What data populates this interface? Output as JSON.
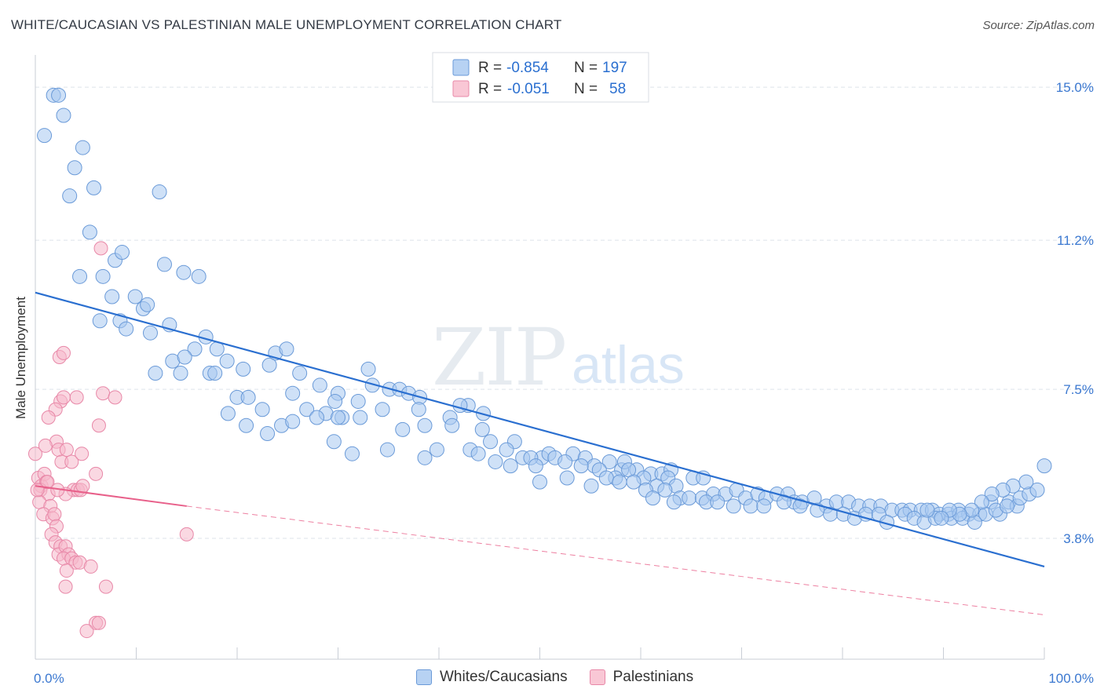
{
  "title": "WHITE/CAUCASIAN VS PALESTINIAN MALE UNEMPLOYMENT CORRELATION CHART",
  "source": "Source: ZipAtlas.com",
  "watermark": {
    "zip": "ZIP",
    "atlas": "atlas"
  },
  "legend": {
    "rows": [
      {
        "r_label": "R =",
        "r_value": "-0.854",
        "n_label": "N =",
        "n_value": "197"
      },
      {
        "r_label": "R =",
        "r_value": "-0.051",
        "n_label": "N =",
        "n_value": "58"
      }
    ],
    "bottom": [
      "Whites/Caucasians",
      "Palestinians"
    ]
  },
  "colors": {
    "blue_fill": "#a8c8f0",
    "blue_stroke": "#6a9ad8",
    "blue_line": "#2a6fd0",
    "pink_fill": "#f6b8cb",
    "pink_stroke": "#e888a8",
    "pink_line": "#e8608a",
    "axis_text": "#3b78d0",
    "grid": "#dde3ea"
  },
  "chart_data": {
    "type": "scatter",
    "title": "WHITE/CAUCASIAN VS PALESTINIAN MALE UNEMPLOYMENT CORRELATION CHART",
    "xlabel": "",
    "ylabel": "Male Unemployment",
    "xlim": [
      0,
      100
    ],
    "ylim": [
      0.8,
      15.8
    ],
    "x_tick_labels": [
      "0.0%",
      "100.0%"
    ],
    "y_ticks": [
      3.8,
      7.5,
      11.2,
      15.0
    ],
    "y_tick_labels": [
      "3.8%",
      "7.5%",
      "11.2%",
      "15.0%"
    ],
    "grid": true,
    "legend_position": "top-center",
    "series": [
      {
        "name": "Whites/Caucasians",
        "r": -0.854,
        "n": 197,
        "trend": {
          "x": [
            0,
            100
          ],
          "y": [
            9.9,
            3.1
          ]
        },
        "points": [
          [
            0.9,
            13.8
          ],
          [
            1.8,
            14.8
          ],
          [
            2.3,
            14.8
          ],
          [
            2.8,
            14.3
          ],
          [
            3.4,
            12.3
          ],
          [
            3.9,
            13.0
          ],
          [
            4.7,
            13.5
          ],
          [
            5.8,
            12.5
          ],
          [
            12.3,
            12.4
          ],
          [
            5.4,
            11.4
          ],
          [
            7.9,
            10.7
          ],
          [
            8.6,
            10.9
          ],
          [
            4.4,
            10.3
          ],
          [
            6.7,
            10.3
          ],
          [
            12.8,
            10.6
          ],
          [
            14.7,
            10.4
          ],
          [
            16.2,
            10.3
          ],
          [
            7.6,
            9.8
          ],
          [
            9.9,
            9.8
          ],
          [
            10.7,
            9.5
          ],
          [
            11.1,
            9.6
          ],
          [
            6.4,
            9.2
          ],
          [
            8.4,
            9.2
          ],
          [
            9.0,
            9.0
          ],
          [
            11.4,
            8.9
          ],
          [
            13.3,
            9.1
          ],
          [
            16.9,
            8.8
          ],
          [
            15.8,
            8.5
          ],
          [
            18.0,
            8.5
          ],
          [
            13.6,
            8.2
          ],
          [
            14.8,
            8.3
          ],
          [
            19.0,
            8.2
          ],
          [
            23.8,
            8.4
          ],
          [
            24.9,
            8.5
          ],
          [
            11.9,
            7.9
          ],
          [
            14.4,
            7.9
          ],
          [
            17.3,
            7.9
          ],
          [
            17.8,
            7.9
          ],
          [
            20.6,
            8.0
          ],
          [
            23.2,
            8.1
          ],
          [
            26.2,
            7.9
          ],
          [
            28.2,
            7.6
          ],
          [
            33.0,
            8.0
          ],
          [
            30.0,
            7.4
          ],
          [
            20.0,
            7.3
          ],
          [
            21.1,
            7.3
          ],
          [
            25.5,
            7.4
          ],
          [
            29.7,
            7.2
          ],
          [
            32.0,
            7.2
          ],
          [
            33.4,
            7.6
          ],
          [
            35.1,
            7.5
          ],
          [
            36.1,
            7.5
          ],
          [
            37.0,
            7.4
          ],
          [
            38.1,
            7.3
          ],
          [
            42.9,
            7.1
          ],
          [
            19.1,
            6.9
          ],
          [
            22.5,
            7.0
          ],
          [
            26.9,
            7.0
          ],
          [
            28.8,
            6.9
          ],
          [
            30.4,
            6.8
          ],
          [
            34.4,
            7.0
          ],
          [
            38.0,
            7.0
          ],
          [
            42.1,
            7.1
          ],
          [
            41.1,
            6.8
          ],
          [
            44.4,
            6.9
          ],
          [
            20.9,
            6.6
          ],
          [
            23.0,
            6.4
          ],
          [
            24.4,
            6.6
          ],
          [
            25.5,
            6.7
          ],
          [
            27.9,
            6.8
          ],
          [
            30.0,
            6.8
          ],
          [
            32.2,
            6.8
          ],
          [
            36.4,
            6.5
          ],
          [
            38.6,
            6.6
          ],
          [
            41.3,
            6.6
          ],
          [
            44.3,
            6.5
          ],
          [
            47.5,
            6.2
          ],
          [
            29.6,
            6.2
          ],
          [
            34.9,
            6.0
          ],
          [
            31.4,
            5.9
          ],
          [
            38.6,
            5.8
          ],
          [
            39.8,
            6.0
          ],
          [
            43.1,
            6.0
          ],
          [
            43.9,
            5.9
          ],
          [
            45.1,
            6.2
          ],
          [
            46.7,
            6.0
          ],
          [
            48.3,
            5.8
          ],
          [
            45.6,
            5.7
          ],
          [
            47.1,
            5.6
          ],
          [
            50.2,
            5.8
          ],
          [
            50.9,
            5.9
          ],
          [
            53.3,
            5.9
          ],
          [
            49.1,
            5.8
          ],
          [
            51.5,
            5.8
          ],
          [
            52.5,
            5.7
          ],
          [
            54.5,
            5.8
          ],
          [
            55.4,
            5.6
          ],
          [
            56.9,
            5.7
          ],
          [
            58.1,
            5.5
          ],
          [
            58.4,
            5.7
          ],
          [
            59.6,
            5.5
          ],
          [
            61.0,
            5.4
          ],
          [
            62.1,
            5.4
          ],
          [
            63.0,
            5.5
          ],
          [
            49.6,
            5.6
          ],
          [
            50.0,
            5.2
          ],
          [
            54.1,
            5.6
          ],
          [
            55.9,
            5.5
          ],
          [
            57.5,
            5.3
          ],
          [
            58.8,
            5.5
          ],
          [
            60.3,
            5.3
          ],
          [
            61.6,
            5.1
          ],
          [
            62.7,
            5.3
          ],
          [
            63.5,
            5.1
          ],
          [
            65.2,
            5.3
          ],
          [
            66.2,
            5.3
          ],
          [
            52.7,
            5.3
          ],
          [
            55.1,
            5.1
          ],
          [
            56.6,
            5.3
          ],
          [
            57.9,
            5.2
          ],
          [
            59.3,
            5.2
          ],
          [
            60.5,
            5.0
          ],
          [
            61.2,
            4.8
          ],
          [
            62.4,
            5.0
          ],
          [
            63.9,
            4.8
          ],
          [
            64.8,
            4.8
          ],
          [
            66.1,
            4.8
          ],
          [
            67.2,
            4.9
          ],
          [
            68.4,
            4.9
          ],
          [
            69.5,
            5.0
          ],
          [
            70.4,
            4.8
          ],
          [
            71.6,
            4.9
          ],
          [
            72.4,
            4.8
          ],
          [
            73.5,
            4.9
          ],
          [
            74.6,
            4.9
          ],
          [
            75.2,
            4.7
          ],
          [
            76.0,
            4.7
          ],
          [
            77.2,
            4.8
          ],
          [
            78.4,
            4.6
          ],
          [
            79.4,
            4.7
          ],
          [
            80.6,
            4.7
          ],
          [
            81.6,
            4.6
          ],
          [
            82.7,
            4.6
          ],
          [
            83.8,
            4.6
          ],
          [
            84.9,
            4.5
          ],
          [
            85.9,
            4.5
          ],
          [
            86.7,
            4.5
          ],
          [
            87.8,
            4.5
          ],
          [
            88.9,
            4.5
          ],
          [
            89.6,
            4.4
          ],
          [
            90.5,
            4.4
          ],
          [
            91.5,
            4.5
          ],
          [
            92.5,
            4.4
          ],
          [
            93.6,
            4.4
          ],
          [
            94.7,
            4.7
          ],
          [
            95.6,
            4.4
          ],
          [
            96.5,
            4.7
          ],
          [
            97.3,
            4.6
          ],
          [
            63.3,
            4.7
          ],
          [
            66.5,
            4.7
          ],
          [
            67.6,
            4.7
          ],
          [
            69.2,
            4.6
          ],
          [
            70.9,
            4.6
          ],
          [
            72.2,
            4.6
          ],
          [
            74.2,
            4.7
          ],
          [
            75.8,
            4.6
          ],
          [
            77.5,
            4.5
          ],
          [
            78.8,
            4.4
          ],
          [
            80.1,
            4.4
          ],
          [
            81.2,
            4.3
          ],
          [
            82.3,
            4.4
          ],
          [
            83.6,
            4.4
          ],
          [
            84.4,
            4.2
          ],
          [
            86.2,
            4.4
          ],
          [
            87.1,
            4.3
          ],
          [
            88.1,
            4.2
          ],
          [
            89.2,
            4.3
          ],
          [
            90.8,
            4.3
          ],
          [
            91.9,
            4.3
          ],
          [
            93.1,
            4.2
          ],
          [
            94.2,
            4.4
          ],
          [
            95.2,
            4.5
          ],
          [
            96.3,
            4.6
          ],
          [
            97.6,
            4.8
          ],
          [
            98.5,
            4.9
          ],
          [
            99.3,
            5.0
          ],
          [
            100.0,
            5.6
          ],
          [
            98.2,
            5.2
          ],
          [
            96.9,
            5.1
          ],
          [
            95.9,
            5.0
          ],
          [
            94.8,
            4.9
          ],
          [
            93.8,
            4.7
          ],
          [
            92.8,
            4.5
          ],
          [
            91.6,
            4.4
          ],
          [
            90.6,
            4.5
          ],
          [
            89.8,
            4.3
          ],
          [
            88.4,
            4.5
          ]
        ]
      },
      {
        "name": "Palestinians",
        "r": -0.051,
        "n": 58,
        "trend_solid": {
          "x": [
            0,
            15
          ],
          "y": [
            5.1,
            4.6
          ]
        },
        "trend_dashed": {
          "x": [
            15,
            100
          ],
          "y": [
            4.6,
            1.9
          ]
        },
        "points": [
          [
            0.0,
            5.9
          ],
          [
            0.3,
            5.3
          ],
          [
            0.6,
            5.1
          ],
          [
            0.9,
            5.4
          ],
          [
            1.1,
            5.2
          ],
          [
            0.5,
            5.0
          ],
          [
            1.3,
            4.9
          ],
          [
            0.4,
            4.7
          ],
          [
            1.5,
            4.6
          ],
          [
            0.8,
            4.4
          ],
          [
            1.7,
            4.3
          ],
          [
            1.9,
            4.4
          ],
          [
            2.1,
            4.1
          ],
          [
            1.6,
            3.9
          ],
          [
            2.0,
            3.7
          ],
          [
            2.5,
            3.6
          ],
          [
            2.3,
            3.4
          ],
          [
            3.0,
            3.6
          ],
          [
            3.3,
            3.4
          ],
          [
            2.8,
            3.3
          ],
          [
            3.6,
            3.3
          ],
          [
            4.0,
            3.2
          ],
          [
            4.4,
            3.2
          ],
          [
            3.1,
            3.0
          ],
          [
            5.5,
            3.1
          ],
          [
            3.0,
            2.6
          ],
          [
            7.0,
            2.6
          ],
          [
            6.0,
            1.7
          ],
          [
            6.3,
            1.7
          ],
          [
            5.1,
            1.5
          ],
          [
            2.4,
            8.3
          ],
          [
            2.8,
            8.4
          ],
          [
            2.5,
            7.2
          ],
          [
            2.8,
            7.3
          ],
          [
            4.1,
            7.3
          ],
          [
            6.7,
            7.4
          ],
          [
            7.9,
            7.3
          ],
          [
            2.0,
            7.0
          ],
          [
            1.3,
            6.8
          ],
          [
            6.3,
            6.6
          ],
          [
            2.1,
            6.2
          ],
          [
            2.3,
            6.0
          ],
          [
            3.1,
            6.0
          ],
          [
            1.0,
            6.1
          ],
          [
            2.6,
            5.7
          ],
          [
            3.6,
            5.7
          ],
          [
            4.6,
            5.9
          ],
          [
            6.0,
            5.4
          ],
          [
            3.8,
            5.0
          ],
          [
            4.2,
            5.0
          ],
          [
            4.5,
            5.0
          ],
          [
            4.7,
            5.1
          ],
          [
            3.0,
            4.9
          ],
          [
            2.2,
            5.0
          ],
          [
            1.2,
            5.2
          ],
          [
            0.2,
            5.0
          ],
          [
            6.5,
            11.0
          ],
          [
            15.0,
            3.9
          ]
        ]
      }
    ]
  }
}
